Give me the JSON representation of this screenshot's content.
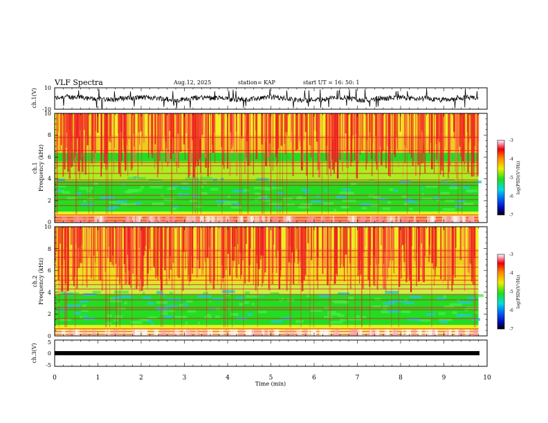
{
  "header": {
    "title": "VLF Spectra",
    "date": "Aug.12, 2025",
    "station": "station= KAP",
    "start": "start  UT =   16: 50: 1"
  },
  "colors": {
    "axis": "#000000",
    "spec_red": "#ee2222",
    "spec_green": "#22dd22",
    "spec_yellow": "#eeee22",
    "spec_cyan": "#22cccc",
    "background": "#ffffff"
  },
  "chart_data": [
    {
      "type": "line",
      "name": "ch1-waveform",
      "ylabel": "ch.1(V)",
      "ylim": [
        -10,
        10
      ],
      "ytick_labels": [
        "10",
        "-10"
      ],
      "xlim": [
        0,
        10
      ]
    },
    {
      "type": "heatmap",
      "name": "ch1-spectrogram",
      "ylabel": "ch.1 Frequency (kHz)",
      "ylabel_lines": [
        "ch.1",
        "Frequency (kHz)"
      ],
      "ylim": [
        0,
        10
      ],
      "ytick_labels": [
        "0",
        "2",
        "4",
        "6",
        "8",
        "10"
      ],
      "xlim": [
        0,
        10
      ],
      "data_end_min": 9.8,
      "colorbar": {
        "range": [
          -7,
          -3
        ],
        "tick_labels": [
          "-3",
          "-4",
          "-5",
          "-6",
          "-7"
        ],
        "label": "log(PSD)(V²/Hz)"
      }
    },
    {
      "type": "heatmap",
      "name": "ch2-spectrogram",
      "ylabel": "ch.2 Frequency (kHz)",
      "ylabel_lines": [
        "ch.2",
        "Frequency (kHz)"
      ],
      "ylim": [
        0,
        10
      ],
      "ytick_labels": [
        "0",
        "2",
        "4",
        "6",
        "8",
        "10"
      ],
      "xlim": [
        0,
        10
      ],
      "data_end_min": 9.8,
      "colorbar": {
        "range": [
          -7,
          -3
        ],
        "tick_labels": [
          "-3",
          "-4",
          "-5",
          "-6",
          "-7"
        ],
        "label": "log(PSD)(V²/Hz)"
      }
    },
    {
      "type": "line",
      "name": "ch3-waveform",
      "ylabel": "ch.3(V)",
      "ylim": [
        -5,
        5
      ],
      "ytick_labels": [
        "5",
        "0",
        "-5"
      ],
      "xlim": [
        0,
        10
      ],
      "xlabel": "Time (min)",
      "xtick_labels": [
        "0",
        "1",
        "2",
        "3",
        "4",
        "5",
        "6",
        "7",
        "8",
        "9",
        "10"
      ]
    }
  ]
}
